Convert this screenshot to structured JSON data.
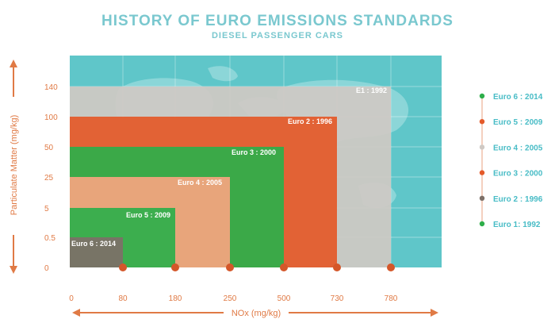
{
  "title": "HISTORY OF EURO EMISSIONS STANDARDS",
  "subtitle": "DIESEL PASSENGER CARS",
  "colors": {
    "background_teal": "#5fc6c9",
    "grid": "#ffffff",
    "e1": "#cfc9c4",
    "euro2": "#e45a2a",
    "euro3": "#2eae4a",
    "euro4": "#f5a57f",
    "euro5": "#2eae4a",
    "euro6": "#7d7068",
    "axis": "#e07a45",
    "legend_text": "#48bcc6"
  },
  "chart_data": {
    "type": "area",
    "title": "HISTORY OF EURO EMISSIONS STANDARDS",
    "subtitle": "DIESEL PASSENGER CARS",
    "xlabel": "NOx (mg/kg)",
    "ylabel": "Particulate Matter (mg/kg)",
    "x_ticks": [
      "0",
      "80",
      "180",
      "250",
      "500",
      "730",
      "780"
    ],
    "y_ticks": [
      "0",
      "0.5",
      "5",
      "25",
      "50",
      "100",
      "140"
    ],
    "standards": [
      {
        "label": "E1 : 1992",
        "nox": 780,
        "pm": 140,
        "color": "#cfc9c4"
      },
      {
        "label": "Euro 2 : 1996",
        "nox": 730,
        "pm": 100,
        "color": "#e45a2a"
      },
      {
        "label": "Euro 3 : 2000",
        "nox": 500,
        "pm": 50,
        "color": "#2eae4a"
      },
      {
        "label": "Euro 4 : 2005",
        "nox": 250,
        "pm": 25,
        "color": "#f5a57f"
      },
      {
        "label": "Euro 5 : 2009",
        "nox": 180,
        "pm": 5,
        "color": "#2eae4a"
      },
      {
        "label": "Euro 6 : 2014",
        "nox": 80,
        "pm": 0.5,
        "color": "#7d7068"
      }
    ],
    "legend_position": "right",
    "legend": [
      {
        "label": "Euro 6 : 2014",
        "color": "#2eae4a"
      },
      {
        "label": "Euro 5 : 2009",
        "color": "#e45a2a"
      },
      {
        "label": "Euro 4 : 2005",
        "color": "#cfc9c4"
      },
      {
        "label": "Euro 3 : 2000",
        "color": "#e45a2a"
      },
      {
        "label": "Euro 2 : 1996",
        "color": "#7d7068"
      },
      {
        "label": "Euro 1:  1992",
        "color": "#2eae4a"
      }
    ],
    "grid": true
  }
}
